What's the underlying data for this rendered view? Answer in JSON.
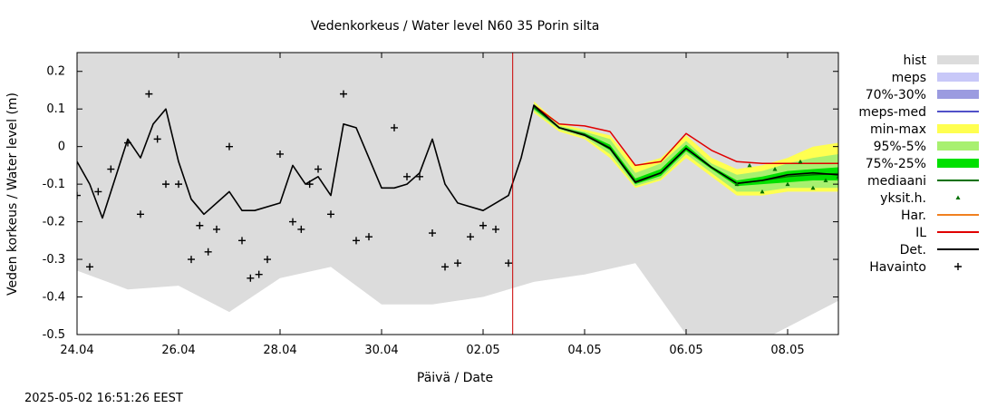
{
  "chart_data": {
    "type": "line",
    "title": "Vedenkorkeus / Water level   N60 35 Porin silta",
    "xlabel": "Päivä / Date",
    "ylabel": "Veden korkeus / Water level (m)",
    "xlim": [
      "2025-04-24",
      "2025-05-09"
    ],
    "ylim": [
      -0.5,
      0.25
    ],
    "yticks": [
      -0.5,
      -0.4,
      -0.3,
      -0.2,
      -0.1,
      0,
      0.1,
      0.2
    ],
    "ytick_labels": [
      "-0.5",
      "-0.4",
      "-0.3",
      "-0.2",
      "-0.1",
      "0",
      "0.1",
      "0.2"
    ],
    "xticks": [
      "2025-04-24",
      "2025-04-26",
      "2025-04-28",
      "2025-04-30",
      "2025-05-02",
      "2025-05-04",
      "2025-05-06",
      "2025-05-08"
    ],
    "xtick_labels": [
      "24.04",
      "26.04",
      "28.04",
      "30.04",
      "02.05",
      "04.05",
      "06.05",
      "08.05"
    ],
    "forecast_start": "2025-05-02 14:00",
    "legend_position": "right",
    "legend": [
      {
        "key": "hist",
        "label": "hist",
        "style": "box",
        "color": "#dcdcdc"
      },
      {
        "key": "meps",
        "label": "meps",
        "style": "box",
        "color": "#c8c8f8"
      },
      {
        "key": "meps7030",
        "label": "70%-30%",
        "style": "box",
        "color": "#9b9be0"
      },
      {
        "key": "mepsmed",
        "label": "meps-med",
        "style": "line",
        "color": "#5050c8"
      },
      {
        "key": "minmax",
        "label": "min-max",
        "style": "box",
        "color": "#ffff50"
      },
      {
        "key": "p955",
        "label": "95%-5%",
        "style": "box",
        "color": "#a8f070"
      },
      {
        "key": "p7525",
        "label": "75%-25%",
        "style": "box",
        "color": "#00e000"
      },
      {
        "key": "median",
        "label": "mediaani",
        "style": "line",
        "color": "#007000"
      },
      {
        "key": "single",
        "label": "yksit.h.",
        "style": "marker",
        "color": "#007000"
      },
      {
        "key": "har",
        "label": "Har.",
        "style": "line",
        "color": "#f08020"
      },
      {
        "key": "il",
        "label": "IL",
        "style": "line",
        "color": "#e00000"
      },
      {
        "key": "det",
        "label": "Det.",
        "style": "line",
        "color": "#000000"
      },
      {
        "key": "obs",
        "label": "Havainto",
        "style": "plus",
        "color": "#000000"
      }
    ],
    "series": [
      {
        "name": "hist",
        "kind": "band",
        "x": [
          "2025-04-24",
          "2025-04-25",
          "2025-04-26",
          "2025-04-27",
          "2025-04-28",
          "2025-04-29",
          "2025-04-30",
          "2025-05-01",
          "2025-05-02",
          "2025-05-03",
          "2025-05-04",
          "2025-05-05",
          "2025-05-06",
          "2025-05-07",
          "2025-05-08",
          "2025-05-09"
        ],
        "lower": [
          -0.33,
          -0.38,
          -0.37,
          -0.44,
          -0.35,
          -0.32,
          -0.42,
          -0.42,
          -0.4,
          -0.36,
          -0.34,
          -0.31,
          -0.5,
          -0.55,
          -0.48,
          -0.41
        ],
        "upper": [
          0.25,
          0.25,
          0.25,
          0.25,
          0.25,
          0.25,
          0.25,
          0.25,
          0.25,
          0.25,
          0.25,
          0.25,
          0.25,
          0.25,
          0.25,
          0.25
        ]
      },
      {
        "name": "min-max",
        "kind": "band",
        "x": [
          "2025-05-03",
          "2025-05-03 12:00",
          "2025-05-04",
          "2025-05-04 12:00",
          "2025-05-05",
          "2025-05-05 12:00",
          "2025-05-06",
          "2025-05-06 12:00",
          "2025-05-07",
          "2025-05-07 12:00",
          "2025-05-08",
          "2025-05-08 12:00",
          "2025-05-09"
        ],
        "lower": [
          0.09,
          0.04,
          0.02,
          -0.03,
          -0.11,
          -0.09,
          -0.03,
          -0.08,
          -0.13,
          -0.13,
          -0.12,
          -0.12,
          -0.12
        ],
        "upper": [
          0.12,
          0.06,
          0.045,
          0.03,
          -0.05,
          -0.03,
          0.03,
          -0.03,
          -0.06,
          -0.05,
          -0.03,
          0.0,
          0.01
        ]
      },
      {
        "name": "95%-5%",
        "kind": "band",
        "x": [
          "2025-05-03",
          "2025-05-03 12:00",
          "2025-05-04",
          "2025-05-04 12:00",
          "2025-05-05",
          "2025-05-05 12:00",
          "2025-05-06",
          "2025-05-06 12:00",
          "2025-05-07",
          "2025-05-07 12:00",
          "2025-05-08",
          "2025-05-08 12:00",
          "2025-05-09"
        ],
        "lower": [
          0.095,
          0.045,
          0.025,
          -0.02,
          -0.105,
          -0.085,
          -0.02,
          -0.07,
          -0.12,
          -0.12,
          -0.11,
          -0.11,
          -0.11
        ],
        "upper": [
          0.115,
          0.055,
          0.04,
          0.02,
          -0.07,
          -0.045,
          0.015,
          -0.045,
          -0.075,
          -0.065,
          -0.045,
          -0.03,
          -0.02
        ]
      },
      {
        "name": "75%-25%",
        "kind": "band",
        "x": [
          "2025-05-03",
          "2025-05-03 12:00",
          "2025-05-04",
          "2025-05-04 12:00",
          "2025-05-05",
          "2025-05-05 12:00",
          "2025-05-06",
          "2025-05-06 12:00",
          "2025-05-07",
          "2025-05-07 12:00",
          "2025-05-08",
          "2025-05-08 12:00",
          "2025-05-09"
        ],
        "lower": [
          0.1,
          0.048,
          0.03,
          -0.01,
          -0.1,
          -0.078,
          -0.012,
          -0.06,
          -0.105,
          -0.1,
          -0.095,
          -0.09,
          -0.09
        ],
        "upper": [
          0.11,
          0.052,
          0.036,
          0.005,
          -0.085,
          -0.06,
          0.005,
          -0.052,
          -0.09,
          -0.08,
          -0.065,
          -0.06,
          -0.055
        ]
      },
      {
        "name": "meps-med",
        "kind": "line",
        "x": [
          "2025-05-03",
          "2025-05-03 12:00",
          "2025-05-04",
          "2025-05-04 12:00",
          "2025-05-05",
          "2025-05-05 12:00",
          "2025-05-06",
          "2025-05-06 12:00"
        ],
        "y": [
          0.105,
          0.05,
          0.033,
          -0.005,
          -0.095,
          -0.07,
          -0.005,
          -0.055
        ]
      },
      {
        "name": "mediaani",
        "kind": "line",
        "x": [
          "2025-05-03",
          "2025-05-03 12:00",
          "2025-05-04",
          "2025-05-04 12:00",
          "2025-05-05",
          "2025-05-05 12:00",
          "2025-05-06",
          "2025-05-06 12:00",
          "2025-05-07",
          "2025-05-07 12:00",
          "2025-05-08",
          "2025-05-08 12:00",
          "2025-05-09"
        ],
        "y": [
          0.105,
          0.05,
          0.033,
          -0.003,
          -0.093,
          -0.07,
          -0.004,
          -0.056,
          -0.098,
          -0.09,
          -0.08,
          -0.075,
          -0.072
        ]
      },
      {
        "name": "IL",
        "kind": "line",
        "x": [
          "2025-05-03",
          "2025-05-03 12:00",
          "2025-05-04",
          "2025-05-04 12:00",
          "2025-05-05",
          "2025-05-05 12:00",
          "2025-05-06",
          "2025-05-06 12:00",
          "2025-05-07",
          "2025-05-07 12:00",
          "2025-05-08",
          "2025-05-08 12:00",
          "2025-05-09"
        ],
        "y": [
          0.11,
          0.06,
          0.055,
          0.04,
          -0.05,
          -0.04,
          0.035,
          -0.01,
          -0.04,
          -0.045,
          -0.045,
          -0.045,
          -0.045
        ]
      },
      {
        "name": "Det.",
        "kind": "line",
        "x": [
          "2025-04-24",
          "2025-04-24 06:00",
          "2025-04-24 12:00",
          "2025-04-25",
          "2025-04-25 06:00",
          "2025-04-25 12:00",
          "2025-04-25 18:00",
          "2025-04-26",
          "2025-04-26 06:00",
          "2025-04-26 12:00",
          "2025-04-27",
          "2025-04-27 06:00",
          "2025-04-27 12:00",
          "2025-04-28",
          "2025-04-28 06:00",
          "2025-04-28 12:00",
          "2025-04-28 18:00",
          "2025-04-29",
          "2025-04-29 06:00",
          "2025-04-29 12:00",
          "2025-04-30",
          "2025-04-30 06:00",
          "2025-04-30 12:00",
          "2025-04-30 18:00",
          "2025-05-01",
          "2025-05-01 06:00",
          "2025-05-01 12:00",
          "2025-05-02",
          "2025-05-02 06:00",
          "2025-05-02 12:00",
          "2025-05-02 18:00",
          "2025-05-03",
          "2025-05-03 12:00",
          "2025-05-04",
          "2025-05-04 12:00",
          "2025-05-05",
          "2025-05-05 12:00",
          "2025-05-06",
          "2025-05-06 12:00",
          "2025-05-07",
          "2025-05-07 12:00",
          "2025-05-08",
          "2025-05-08 12:00",
          "2025-05-09"
        ],
        "y": [
          -0.04,
          -0.1,
          -0.19,
          0.02,
          -0.03,
          0.06,
          0.1,
          -0.04,
          -0.14,
          -0.18,
          -0.12,
          -0.17,
          -0.17,
          -0.15,
          -0.05,
          -0.1,
          -0.08,
          -0.13,
          0.06,
          0.05,
          -0.11,
          -0.11,
          -0.1,
          -0.07,
          0.02,
          -0.1,
          -0.15,
          -0.17,
          -0.15,
          -0.13,
          -0.03,
          0.11,
          0.05,
          0.03,
          -0.005,
          -0.095,
          -0.07,
          -0.005,
          -0.055,
          -0.098,
          -0.09,
          -0.075,
          -0.07,
          -0.075
        ]
      },
      {
        "name": "Havainto",
        "kind": "scatter",
        "x": [
          "2025-04-24",
          "2025-04-24 06:00",
          "2025-04-24 10:00",
          "2025-04-24 16:00",
          "2025-04-25",
          "2025-04-25 06:00",
          "2025-04-25 10:00",
          "2025-04-25 14:00",
          "2025-04-25 18:00",
          "2025-04-26",
          "2025-04-26 06:00",
          "2025-04-26 10:00",
          "2025-04-26 14:00",
          "2025-04-26 18:00",
          "2025-04-27",
          "2025-04-27 06:00",
          "2025-04-27 10:00",
          "2025-04-27 14:00",
          "2025-04-27 18:00",
          "2025-04-28",
          "2025-04-28 06:00",
          "2025-04-28 10:00",
          "2025-04-28 14:00",
          "2025-04-28 18:00",
          "2025-04-29",
          "2025-04-29 06:00",
          "2025-04-29 12:00",
          "2025-04-29 18:00",
          "2025-04-30 06:00",
          "2025-04-30 12:00",
          "2025-04-30 18:00",
          "2025-05-01",
          "2025-05-01 06:00",
          "2025-05-01 12:00",
          "2025-05-01 18:00",
          "2025-05-02",
          "2025-05-02 06:00",
          "2025-05-02 12:00"
        ],
        "y": [
          -0.13,
          -0.32,
          -0.12,
          -0.06,
          0.01,
          -0.18,
          0.14,
          0.02,
          -0.1,
          -0.1,
          -0.3,
          -0.21,
          -0.28,
          -0.22,
          0.0,
          -0.25,
          -0.35,
          -0.34,
          -0.3,
          -0.02,
          -0.2,
          -0.22,
          -0.1,
          -0.06,
          -0.18,
          0.14,
          -0.25,
          -0.24,
          0.05,
          -0.08,
          -0.08,
          -0.23,
          -0.32,
          -0.31,
          -0.24,
          -0.21,
          -0.22,
          -0.31
        ]
      },
      {
        "name": "yksit.h.",
        "kind": "scatter",
        "x": [
          "2025-05-07",
          "2025-05-07 06:00",
          "2025-05-07 12:00",
          "2025-05-07 18:00",
          "2025-05-08",
          "2025-05-08 06:00",
          "2025-05-08 12:00",
          "2025-05-08 18:00",
          "2025-05-09"
        ],
        "y": [
          -0.1,
          -0.05,
          -0.12,
          -0.06,
          -0.1,
          -0.04,
          -0.11,
          -0.09,
          -0.08
        ]
      }
    ]
  },
  "footer": {
    "timestamp": "2025-05-02 16:51:26 EEST"
  }
}
